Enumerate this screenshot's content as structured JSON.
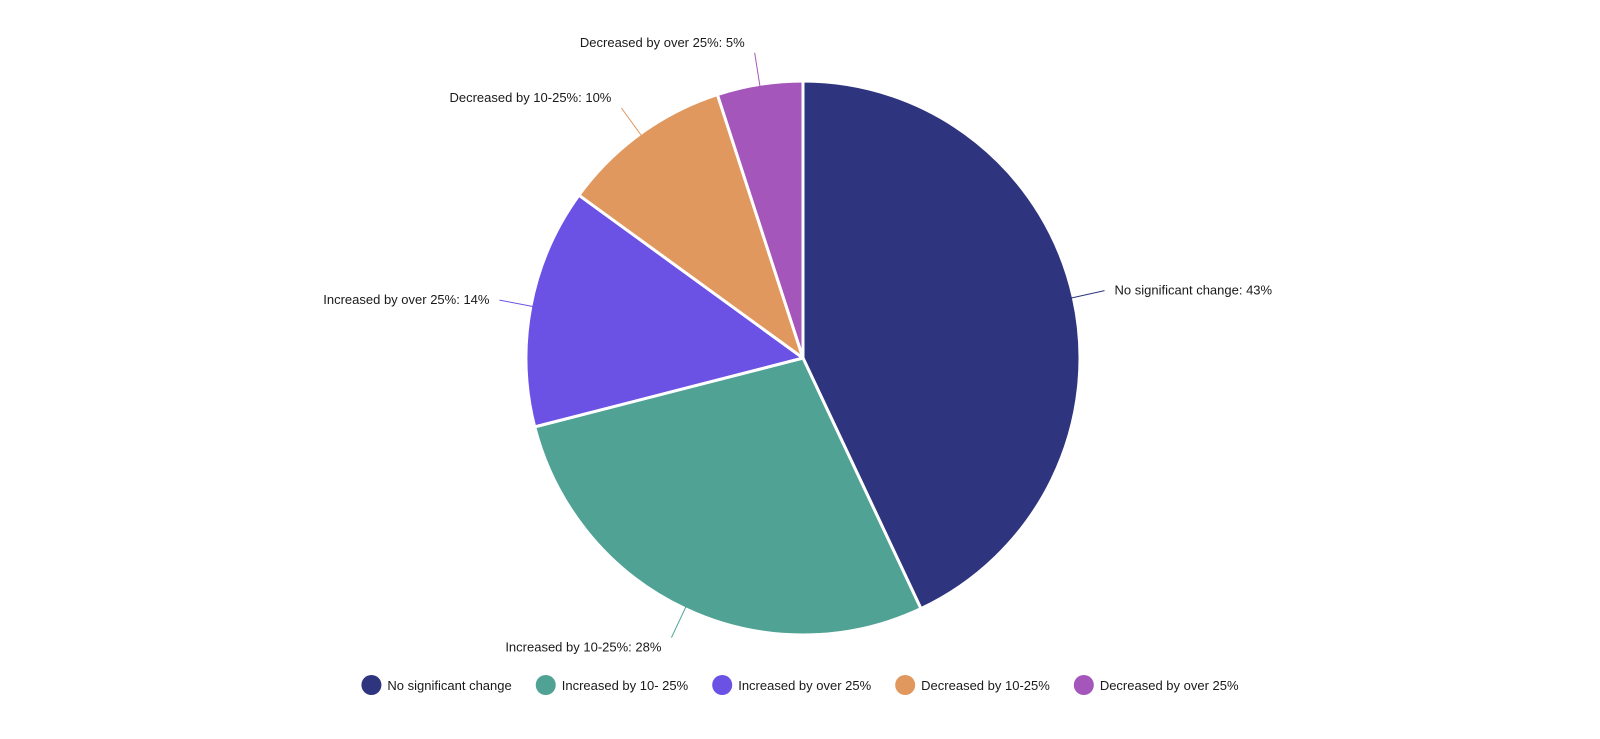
{
  "chart_data": {
    "type": "pie",
    "title": "",
    "start_angle_deg": 0,
    "direction": "clockwise",
    "legend_position": "bottom",
    "slices": [
      {
        "label": "No significant change",
        "legend_label": "No significant change",
        "value": 43,
        "value_text": "No significant change: 43%",
        "color": "#2e347d"
      },
      {
        "label": "Increased by 10-25%",
        "legend_label": "Increased by 10- 25%",
        "value": 28,
        "value_text": "Increased by 10-25%: 28%",
        "color": "#4fa294"
      },
      {
        "label": "Increased by over 25%",
        "legend_label": "Increased by over 25%",
        "value": 14,
        "value_text": "Increased by over 25%: 14%",
        "color": "#6b51e4"
      },
      {
        "label": "Decreased by 10-25%",
        "legend_label": "Decreased by 10-25%",
        "value": 10,
        "value_text": "Decreased by 10-25%: 10%",
        "color": "#e0985f"
      },
      {
        "label": "Decreased by over 25%",
        "legend_label": "Decreased by over 25%",
        "value": 5,
        "value_text": "Decreased by over 25%: 5%",
        "color": "#a456bb"
      }
    ]
  }
}
